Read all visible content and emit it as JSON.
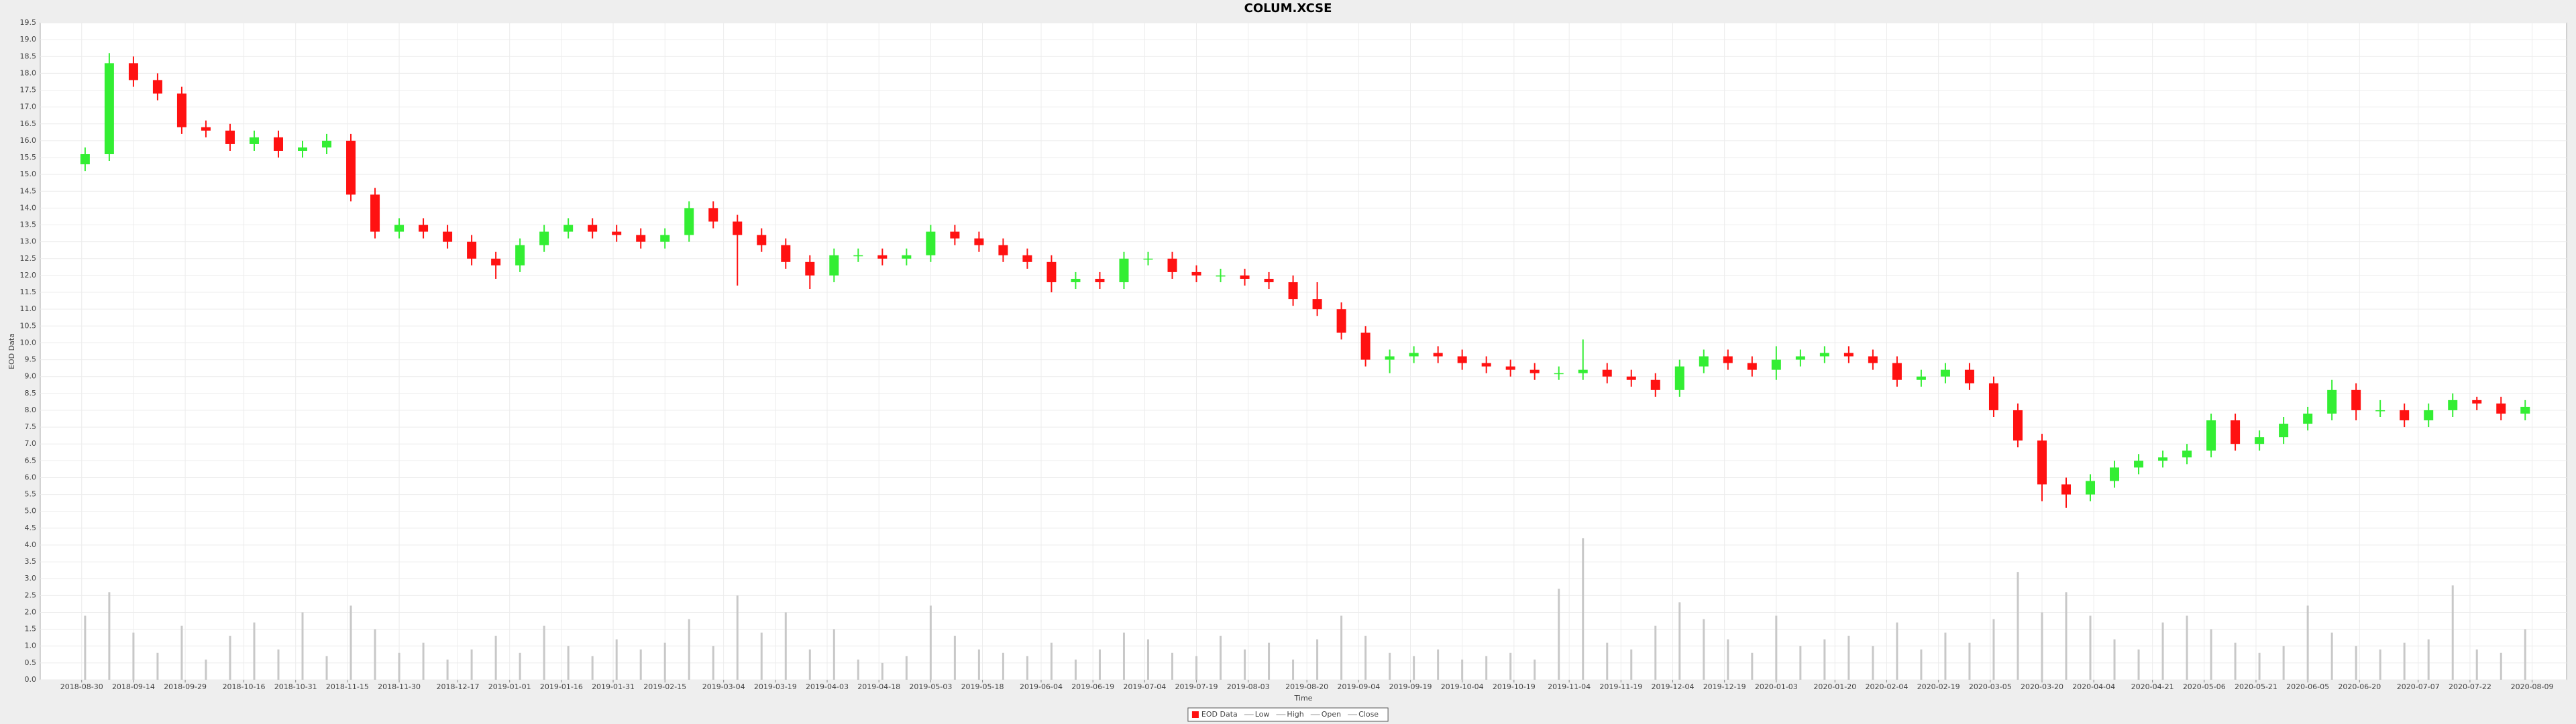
{
  "chart_data": {
    "type": "candlestick",
    "title": "COLUM.XCSE",
    "xlabel": "Time",
    "ylabel": "EOD Data",
    "candle_name": "EOD Data",
    "up_color": "#33ee33",
    "down_color": "#ff1111",
    "volume_color": "#c8c8c8",
    "grid": true,
    "legend": "bottom",
    "x": [
      "2018-08-31",
      "2018-09-07",
      "2018-09-14",
      "2018-09-21",
      "2018-09-28",
      "2018-10-05",
      "2018-10-12",
      "2018-10-19",
      "2018-10-26",
      "2018-11-02",
      "2018-11-09",
      "2018-11-16",
      "2018-11-23",
      "2018-11-30",
      "2018-12-07",
      "2018-12-14",
      "2018-12-21",
      "2018-12-28",
      "2019-01-04",
      "2019-01-11",
      "2019-01-18",
      "2019-01-25",
      "2019-02-01",
      "2019-02-08",
      "2019-02-15",
      "2019-02-22",
      "2019-03-01",
      "2019-03-08",
      "2019-03-15",
      "2019-03-22",
      "2019-03-29",
      "2019-04-05",
      "2019-04-12",
      "2019-04-19",
      "2019-04-26",
      "2019-05-03",
      "2019-05-10",
      "2019-05-17",
      "2019-05-24",
      "2019-05-31",
      "2019-06-07",
      "2019-06-14",
      "2019-06-21",
      "2019-06-28",
      "2019-07-05",
      "2019-07-12",
      "2019-07-19",
      "2019-07-26",
      "2019-08-02",
      "2019-08-09",
      "2019-08-16",
      "2019-08-23",
      "2019-08-30",
      "2019-09-06",
      "2019-09-13",
      "2019-09-20",
      "2019-09-27",
      "2019-10-04",
      "2019-10-11",
      "2019-10-18",
      "2019-10-25",
      "2019-11-01",
      "2019-11-08",
      "2019-11-15",
      "2019-11-22",
      "2019-11-29",
      "2019-12-06",
      "2019-12-13",
      "2019-12-20",
      "2019-12-27",
      "2020-01-03",
      "2020-01-10",
      "2020-01-17",
      "2020-01-24",
      "2020-01-31",
      "2020-02-07",
      "2020-02-14",
      "2020-02-21",
      "2020-02-28",
      "2020-03-06",
      "2020-03-13",
      "2020-03-20",
      "2020-03-27",
      "2020-04-03",
      "2020-04-10",
      "2020-04-17",
      "2020-04-24",
      "2020-05-01",
      "2020-05-08",
      "2020-05-15",
      "2020-05-22",
      "2020-05-29",
      "2020-06-05",
      "2020-06-12",
      "2020-06-19",
      "2020-06-26",
      "2020-07-03",
      "2020-07-10",
      "2020-07-17",
      "2020-07-24",
      "2020-07-31",
      "2020-08-07"
    ],
    "series": [
      {
        "name": "Low",
        "color": "#999999",
        "values": [
          15.1,
          15.4,
          17.6,
          17.2,
          16.2,
          16.1,
          15.7,
          15.7,
          15.5,
          15.5,
          15.6,
          14.2,
          13.1,
          13.1,
          13.1,
          12.8,
          12.3,
          11.9,
          12.1,
          12.7,
          13.1,
          13.1,
          13.0,
          12.8,
          12.8,
          13.0,
          13.4,
          11.7,
          12.7,
          12.2,
          11.6,
          11.8,
          12.4,
          12.3,
          12.3,
          12.4,
          12.9,
          12.7,
          12.4,
          12.2,
          11.5,
          11.6,
          11.6,
          11.6,
          12.3,
          11.9,
          11.8,
          11.8,
          11.7,
          11.6,
          11.1,
          10.8,
          10.1,
          9.3,
          9.1,
          9.4,
          9.4,
          9.2,
          9.1,
          9.0,
          8.9,
          8.9,
          8.9,
          8.8,
          8.7,
          8.4,
          8.4,
          9.1,
          9.2,
          9.0,
          8.9,
          9.3,
          9.4,
          9.4,
          9.2,
          8.7,
          8.7,
          8.8,
          8.6,
          7.8,
          6.9,
          5.3,
          5.1,
          5.3,
          5.7,
          6.1,
          6.3,
          6.4,
          6.6,
          6.8,
          6.8,
          7.0,
          7.4,
          7.7,
          7.7,
          7.8,
          7.5,
          7.5,
          7.8,
          8.0,
          7.7,
          7.7
        ]
      },
      {
        "name": "High",
        "color": "#999999",
        "values": [
          15.8,
          18.6,
          18.5,
          18.0,
          17.6,
          16.6,
          16.5,
          16.3,
          16.3,
          16.0,
          16.2,
          16.2,
          14.6,
          13.7,
          13.7,
          13.5,
          13.2,
          12.7,
          13.1,
          13.5,
          13.7,
          13.7,
          13.5,
          13.4,
          13.4,
          14.2,
          14.2,
          13.8,
          13.4,
          13.1,
          12.6,
          12.8,
          12.8,
          12.8,
          12.8,
          13.5,
          13.5,
          13.3,
          13.1,
          12.8,
          12.6,
          12.1,
          12.1,
          12.7,
          12.7,
          12.7,
          12.3,
          12.2,
          12.2,
          12.1,
          12.0,
          11.8,
          11.2,
          10.5,
          9.8,
          9.9,
          9.9,
          9.8,
          9.6,
          9.5,
          9.4,
          9.3,
          10.1,
          9.4,
          9.2,
          9.1,
          9.5,
          9.8,
          9.8,
          9.6,
          9.9,
          9.8,
          9.9,
          9.9,
          9.8,
          9.6,
          9.2,
          9.4,
          9.4,
          9.0,
          8.2,
          7.3,
          6.0,
          6.1,
          6.5,
          6.7,
          6.8,
          7.0,
          7.9,
          7.9,
          7.4,
          7.8,
          8.1,
          8.9,
          8.8,
          8.3,
          8.2,
          8.2,
          8.5,
          8.4,
          8.4,
          8.3
        ]
      },
      {
        "name": "Open",
        "color": "#999999",
        "values": [
          15.3,
          15.6,
          18.3,
          17.8,
          17.4,
          16.4,
          16.3,
          15.9,
          16.1,
          15.7,
          15.8,
          16.0,
          14.4,
          13.3,
          13.5,
          13.3,
          13.0,
          12.5,
          12.3,
          12.9,
          13.3,
          13.5,
          13.3,
          13.2,
          13.0,
          13.2,
          14.0,
          13.6,
          13.2,
          12.9,
          12.4,
          12.0,
          12.6,
          12.6,
          12.5,
          12.6,
          13.3,
          13.1,
          12.9,
          12.6,
          12.4,
          11.8,
          11.9,
          11.8,
          12.5,
          12.5,
          12.1,
          12.0,
          12.0,
          11.9,
          11.8,
          11.3,
          11.0,
          10.3,
          9.5,
          9.6,
          9.7,
          9.6,
          9.4,
          9.3,
          9.2,
          9.1,
          9.1,
          9.2,
          9.0,
          8.9,
          8.6,
          9.3,
          9.6,
          9.4,
          9.2,
          9.5,
          9.6,
          9.7,
          9.6,
          9.4,
          8.9,
          9.0,
          9.2,
          8.8,
          8.0,
          7.1,
          5.8,
          5.5,
          5.9,
          6.3,
          6.5,
          6.6,
          6.8,
          7.7,
          7.0,
          7.2,
          7.6,
          7.9,
          8.6,
          8.0,
          8.0,
          7.7,
          8.0,
          8.3,
          8.2,
          7.9
        ]
      },
      {
        "name": "Close",
        "color": "#999999",
        "values": [
          15.6,
          18.3,
          17.8,
          17.4,
          16.4,
          16.3,
          15.9,
          16.1,
          15.7,
          15.8,
          16.0,
          14.4,
          13.3,
          13.5,
          13.3,
          13.0,
          12.5,
          12.3,
          12.9,
          13.3,
          13.5,
          13.3,
          13.2,
          13.0,
          13.2,
          14.0,
          13.6,
          13.2,
          12.9,
          12.4,
          12.0,
          12.6,
          12.6,
          12.5,
          12.6,
          13.3,
          13.1,
          12.9,
          12.6,
          12.4,
          11.8,
          11.9,
          11.8,
          12.5,
          12.5,
          12.1,
          12.0,
          12.0,
          11.9,
          11.8,
          11.3,
          11.0,
          10.3,
          9.5,
          9.6,
          9.7,
          9.6,
          9.4,
          9.3,
          9.2,
          9.1,
          9.1,
          9.2,
          9.0,
          8.9,
          8.6,
          9.3,
          9.6,
          9.4,
          9.2,
          9.5,
          9.6,
          9.7,
          9.6,
          9.4,
          8.9,
          9.0,
          9.2,
          8.8,
          8.0,
          7.1,
          5.8,
          5.5,
          5.9,
          6.3,
          6.5,
          6.6,
          6.8,
          7.7,
          7.0,
          7.2,
          7.6,
          7.9,
          8.6,
          8.0,
          8.0,
          7.7,
          8.0,
          8.3,
          8.2,
          7.9,
          8.1
        ]
      }
    ],
    "volume": [
      1.9,
      2.6,
      1.4,
      0.8,
      1.6,
      0.6,
      1.3,
      1.7,
      0.9,
      2.0,
      0.7,
      2.2,
      1.5,
      0.8,
      1.1,
      0.6,
      0.9,
      1.3,
      0.8,
      1.6,
      1.0,
      0.7,
      1.2,
      0.9,
      1.1,
      1.8,
      1.0,
      2.5,
      1.4,
      2.0,
      0.9,
      1.5,
      0.6,
      0.5,
      0.7,
      2.2,
      1.3,
      0.9,
      0.8,
      0.7,
      1.1,
      0.6,
      0.9,
      1.4,
      1.2,
      0.8,
      0.7,
      1.3,
      0.9,
      1.1,
      0.6,
      1.2,
      1.9,
      1.3,
      0.8,
      0.7,
      0.9,
      0.6,
      0.7,
      0.8,
      0.6,
      2.7,
      4.2,
      1.1,
      0.9,
      1.6,
      2.3,
      1.8,
      1.2,
      0.8,
      1.9,
      1.0,
      1.2,
      1.3,
      1.0,
      1.7,
      0.9,
      1.4,
      1.1,
      1.8,
      3.2,
      2.0,
      2.6,
      1.9,
      1.2,
      0.9,
      1.7,
      1.9,
      1.5,
      1.1,
      0.8,
      1.0,
      2.2,
      1.4,
      1.0,
      0.9,
      1.1,
      1.2,
      2.8,
      0.9,
      0.8,
      1.5
    ],
    "xlim": [
      "2018-08-18",
      "2020-08-19"
    ],
    "xticks": [
      "2018-08-30",
      "2018-09-14",
      "2018-09-29",
      "2018-10-16",
      "2018-10-31",
      "2018-11-15",
      "2018-11-30",
      "2018-12-17",
      "2019-01-01",
      "2019-01-16",
      "2019-01-31",
      "2019-02-15",
      "2019-03-04",
      "2019-03-19",
      "2019-04-03",
      "2019-04-18",
      "2019-05-03",
      "2019-05-18",
      "2019-06-04",
      "2019-06-19",
      "2019-07-04",
      "2019-07-19",
      "2019-08-03",
      "2019-08-20",
      "2019-09-04",
      "2019-09-19",
      "2019-10-04",
      "2019-10-19",
      "2019-11-04",
      "2019-11-19",
      "2019-12-04",
      "2019-12-19",
      "2020-01-03",
      "2020-01-20",
      "2020-02-04",
      "2020-02-19",
      "2020-03-05",
      "2020-03-20",
      "2020-04-04",
      "2020-04-21",
      "2020-05-06",
      "2020-05-21",
      "2020-06-05",
      "2020-06-20",
      "2020-07-07",
      "2020-07-22",
      "2020-08-09"
    ],
    "ylim": [
      0,
      19.5
    ],
    "yticks": [
      {
        "value": 0,
        "label": "0.0"
      },
      0.5,
      {
        "value": 1,
        "label": "1.0"
      },
      1.5,
      {
        "value": 2,
        "label": "2.0"
      },
      2.5,
      {
        "value": 3,
        "label": "3.0"
      },
      3.5,
      {
        "value": 4,
        "label": "4.0"
      },
      4.5,
      {
        "value": 5,
        "label": "5.0"
      },
      5.5,
      {
        "value": 6,
        "label": "6.0"
      },
      6.5,
      {
        "value": 7,
        "label": "7.0"
      },
      7.5,
      {
        "value": 8,
        "label": "8.0"
      },
      8.5,
      {
        "value": 9,
        "label": "9.0"
      },
      9.5,
      {
        "value": 10,
        "label": "10.0"
      },
      10.5,
      {
        "value": 11,
        "label": "11.0"
      },
      11.5,
      {
        "value": 12,
        "label": "12.0"
      },
      12.5,
      {
        "value": 13,
        "label": "13.0"
      },
      13.5,
      {
        "value": 14,
        "label": "14.0"
      },
      14.5,
      {
        "value": 15,
        "label": "15.0"
      },
      15.5,
      {
        "value": 16,
        "label": "16.0"
      },
      16.5,
      {
        "value": 17,
        "label": "17.0"
      },
      17.5,
      {
        "value": 18,
        "label": "18.0"
      },
      18.5,
      {
        "value": 19,
        "label": "19.0"
      },
      19.5
    ]
  }
}
